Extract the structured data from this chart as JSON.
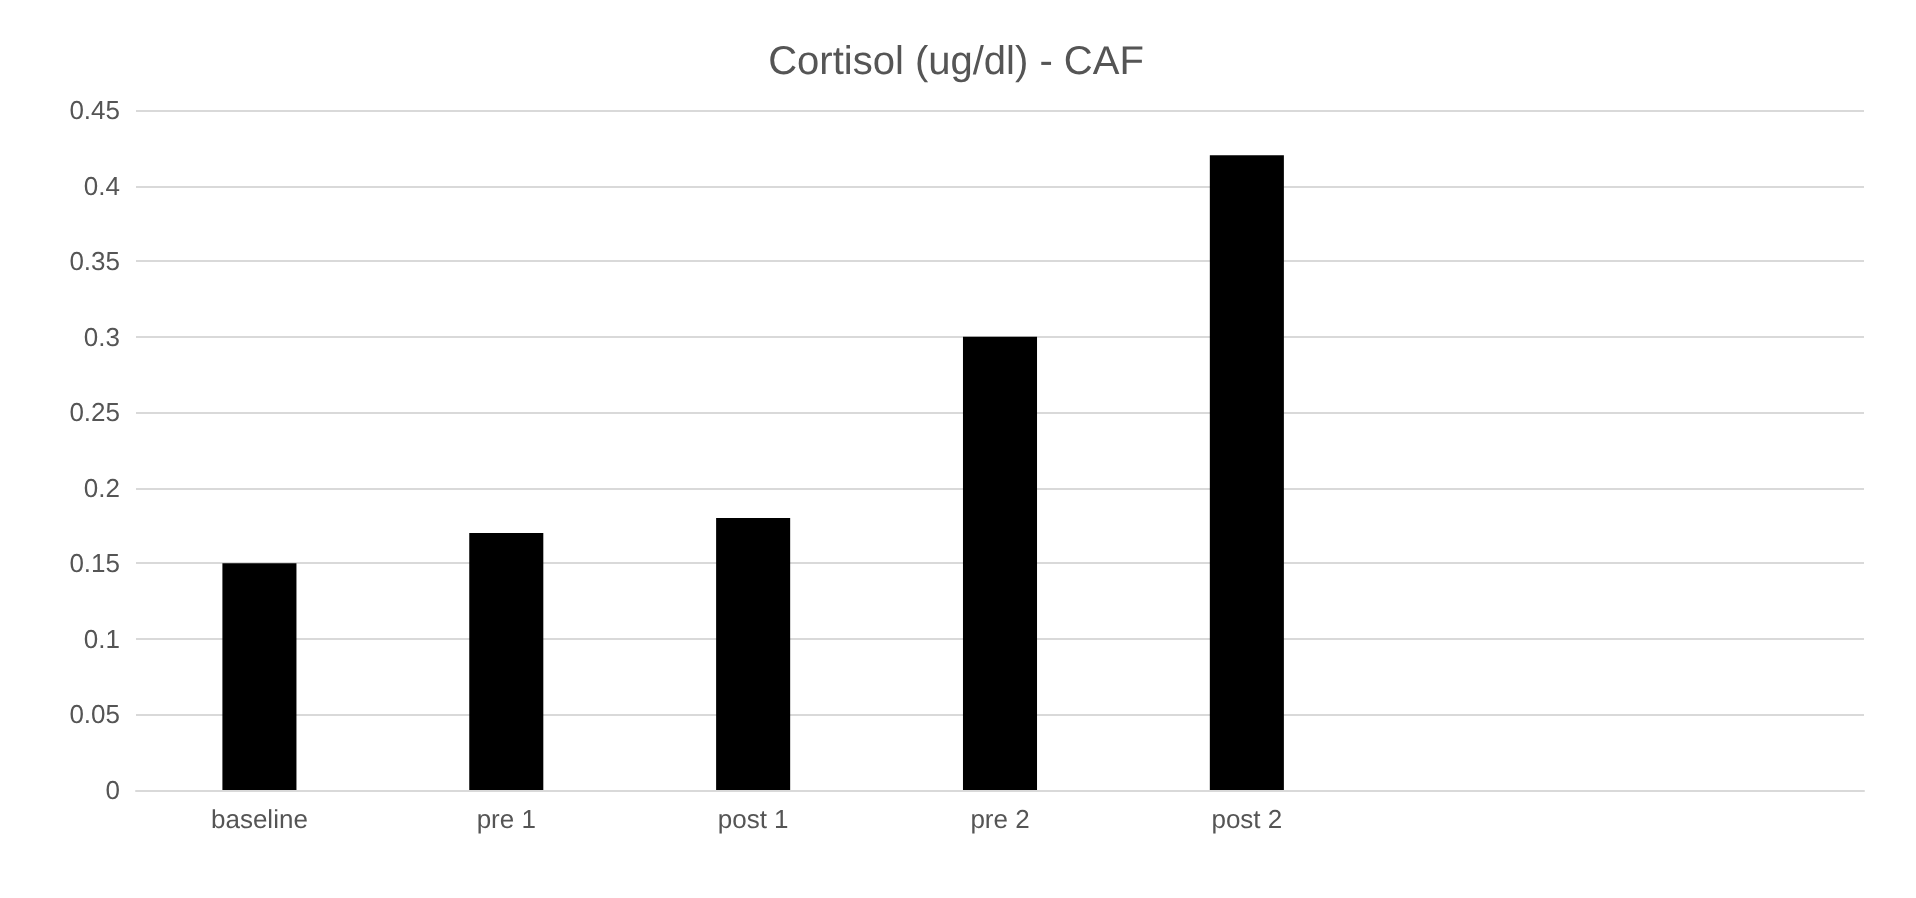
{
  "chart_data": {
    "type": "bar",
    "title": "Cortisol (ug/dl) - CAF",
    "categories": [
      "baseline",
      "pre 1",
      "post 1",
      "pre 2",
      "post 2",
      null,
      null
    ],
    "values": [
      0.15,
      0.17,
      0.18,
      0.3,
      0.42,
      null,
      null
    ],
    "color": "#000000",
    "ylim": [
      0,
      0.45
    ],
    "yticks": [
      0,
      0.05,
      0.1,
      0.15,
      0.2,
      0.25,
      0.3,
      0.35,
      0.4,
      0.45
    ],
    "grid": "y"
  }
}
